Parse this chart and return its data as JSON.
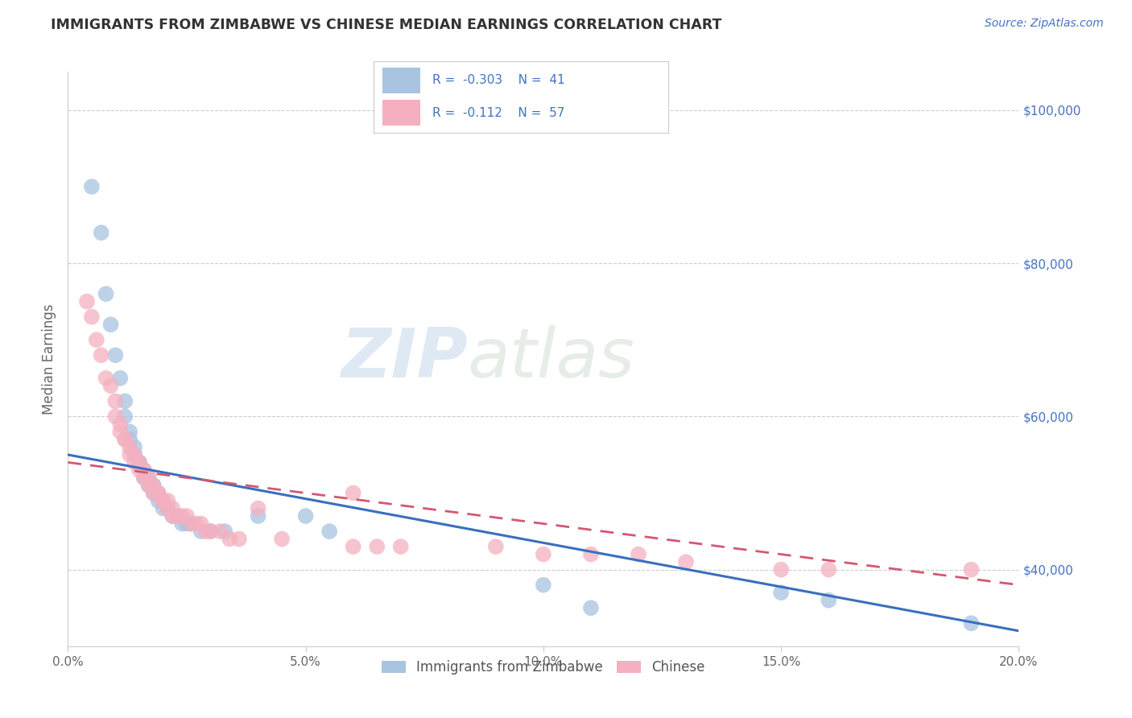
{
  "title": "IMMIGRANTS FROM ZIMBABWE VS CHINESE MEDIAN EARNINGS CORRELATION CHART",
  "source": "Source: ZipAtlas.com",
  "ylabel": "Median Earnings",
  "xlim": [
    0.0,
    0.2
  ],
  "ylim": [
    30000,
    105000
  ],
  "xticks": [
    0.0,
    0.05,
    0.1,
    0.15,
    0.2
  ],
  "xtick_labels": [
    "0.0%",
    "5.0%",
    "10.0%",
    "15.0%",
    "20.0%"
  ],
  "yticks": [
    40000,
    60000,
    80000,
    100000
  ],
  "ytick_labels": [
    "$40,000",
    "$60,000",
    "$80,000",
    "$100,000"
  ],
  "watermark_zip": "ZIP",
  "watermark_atlas": "atlas",
  "blue_line": [
    55000,
    32000
  ],
  "pink_line": [
    54000,
    38000
  ],
  "series": [
    {
      "label": "Immigrants from Zimbabwe",
      "R": -0.303,
      "N": 41,
      "color": "#a8c4e0",
      "line_color": "#3a6fbd",
      "line_style": "solid",
      "x": [
        0.005,
        0.007,
        0.008,
        0.009,
        0.01,
        0.011,
        0.012,
        0.012,
        0.013,
        0.013,
        0.014,
        0.014,
        0.015,
        0.015,
        0.016,
        0.016,
        0.017,
        0.017,
        0.018,
        0.018,
        0.019,
        0.019,
        0.02,
        0.02,
        0.021,
        0.022,
        0.023,
        0.024,
        0.025,
        0.026,
        0.028,
        0.03,
        0.033,
        0.04,
        0.05,
        0.055,
        0.1,
        0.11,
        0.15,
        0.16,
        0.19
      ],
      "y": [
        90000,
        84000,
        76000,
        72000,
        68000,
        65000,
        62000,
        60000,
        58000,
        57000,
        56000,
        55000,
        54000,
        54000,
        53000,
        52000,
        52000,
        51000,
        51000,
        50000,
        50000,
        49000,
        49000,
        48000,
        48000,
        47000,
        47000,
        46000,
        46000,
        46000,
        45000,
        45000,
        45000,
        47000,
        47000,
        45000,
        38000,
        35000,
        37000,
        36000,
        33000
      ]
    },
    {
      "label": "Chinese",
      "R": -0.112,
      "N": 57,
      "color": "#f4b0c0",
      "line_color": "#d45870",
      "line_style": "dashed",
      "x": [
        0.004,
        0.005,
        0.006,
        0.007,
        0.008,
        0.009,
        0.01,
        0.01,
        0.011,
        0.011,
        0.012,
        0.012,
        0.013,
        0.013,
        0.014,
        0.014,
        0.015,
        0.015,
        0.016,
        0.016,
        0.017,
        0.017,
        0.018,
        0.018,
        0.019,
        0.019,
        0.02,
        0.02,
        0.021,
        0.021,
        0.022,
        0.022,
        0.023,
        0.024,
        0.025,
        0.026,
        0.027,
        0.028,
        0.029,
        0.03,
        0.032,
        0.034,
        0.036,
        0.04,
        0.045,
        0.06,
        0.06,
        0.065,
        0.07,
        0.09,
        0.1,
        0.11,
        0.12,
        0.13,
        0.15,
        0.16,
        0.19
      ],
      "y": [
        75000,
        73000,
        70000,
        68000,
        65000,
        64000,
        62000,
        60000,
        59000,
        58000,
        57000,
        57000,
        56000,
        55000,
        55000,
        54000,
        54000,
        53000,
        53000,
        52000,
        52000,
        51000,
        51000,
        50000,
        50000,
        50000,
        49000,
        49000,
        49000,
        48000,
        48000,
        47000,
        47000,
        47000,
        47000,
        46000,
        46000,
        46000,
        45000,
        45000,
        45000,
        44000,
        44000,
        48000,
        44000,
        50000,
        43000,
        43000,
        43000,
        43000,
        42000,
        42000,
        42000,
        41000,
        40000,
        40000,
        40000
      ]
    }
  ],
  "background_color": "#ffffff",
  "grid_color": "#cccccc",
  "title_color": "#333333",
  "source_color": "#4472c4",
  "label_color": "#666666"
}
